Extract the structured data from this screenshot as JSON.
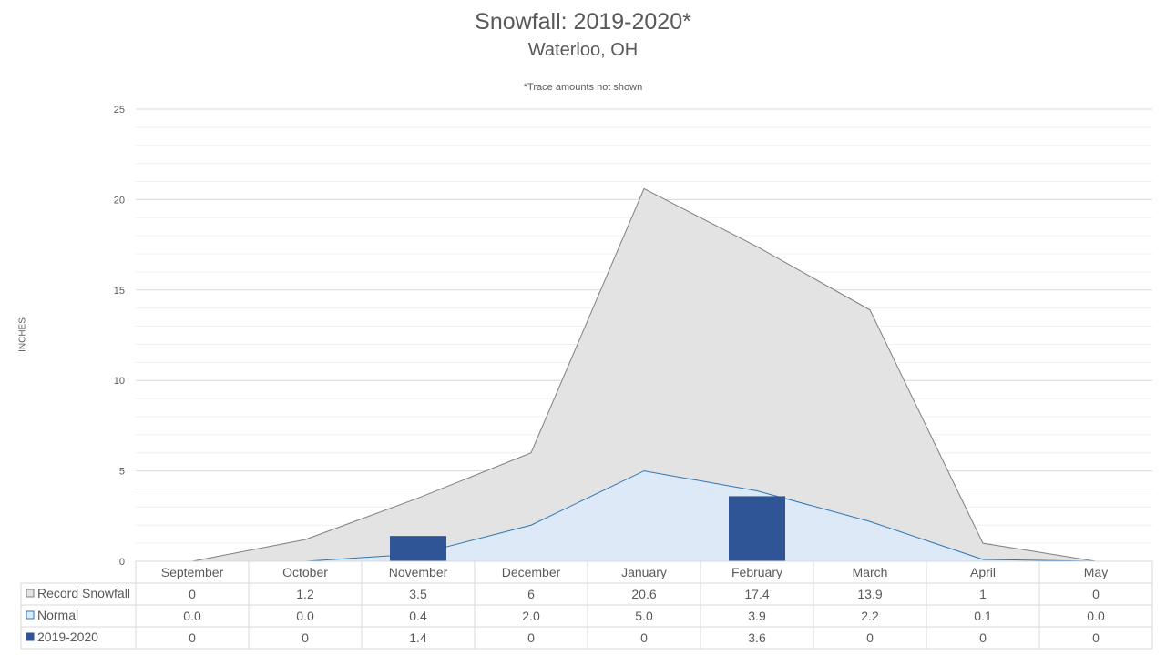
{
  "header": {
    "title": "Snowfall: 2019-2020*",
    "subtitle": "Waterloo, OH",
    "note": "*Trace amounts not shown"
  },
  "chart_data": {
    "type": "area",
    "title": "Snowfall: 2019-2020*",
    "subtitle": "Waterloo, OH",
    "ylabel": "INCHES",
    "xlabel": "",
    "ylim": [
      0,
      25
    ],
    "yticks": [
      "0",
      "5",
      "10",
      "15",
      "20",
      "25"
    ],
    "grid": true,
    "legend": "data-table",
    "categories": [
      "September",
      "October",
      "November",
      "December",
      "January",
      "February",
      "March",
      "April",
      "May"
    ],
    "series": [
      {
        "name": "Record Snowfall",
        "kind": "area",
        "color": "#e3e3e3",
        "stroke": "#7f7f7f",
        "values": [
          0,
          1.2,
          3.5,
          6,
          20.6,
          17.4,
          13.9,
          1,
          0
        ],
        "labels": [
          "0",
          "1.2",
          "3.5",
          "6",
          "20.6",
          "17.4",
          "13.9",
          "1",
          "0"
        ]
      },
      {
        "name": "Normal",
        "kind": "area",
        "color": "#dde9f6",
        "stroke": "#2e75b6",
        "values": [
          0.0,
          0.0,
          0.4,
          2.0,
          5.0,
          3.9,
          2.2,
          0.1,
          0.0
        ],
        "labels": [
          "0.0",
          "0.0",
          "0.4",
          "2.0",
          "5.0",
          "3.9",
          "2.2",
          "0.1",
          "0.0"
        ]
      },
      {
        "name": "2019-2020",
        "kind": "bar",
        "color": "#2f5597",
        "stroke": "#2f5597",
        "values": [
          0,
          0,
          1.4,
          0,
          0,
          3.6,
          0,
          0,
          0
        ],
        "labels": [
          "0",
          "0",
          "1.4",
          "0",
          "0",
          "3.6",
          "0",
          "0",
          "0"
        ]
      }
    ]
  }
}
